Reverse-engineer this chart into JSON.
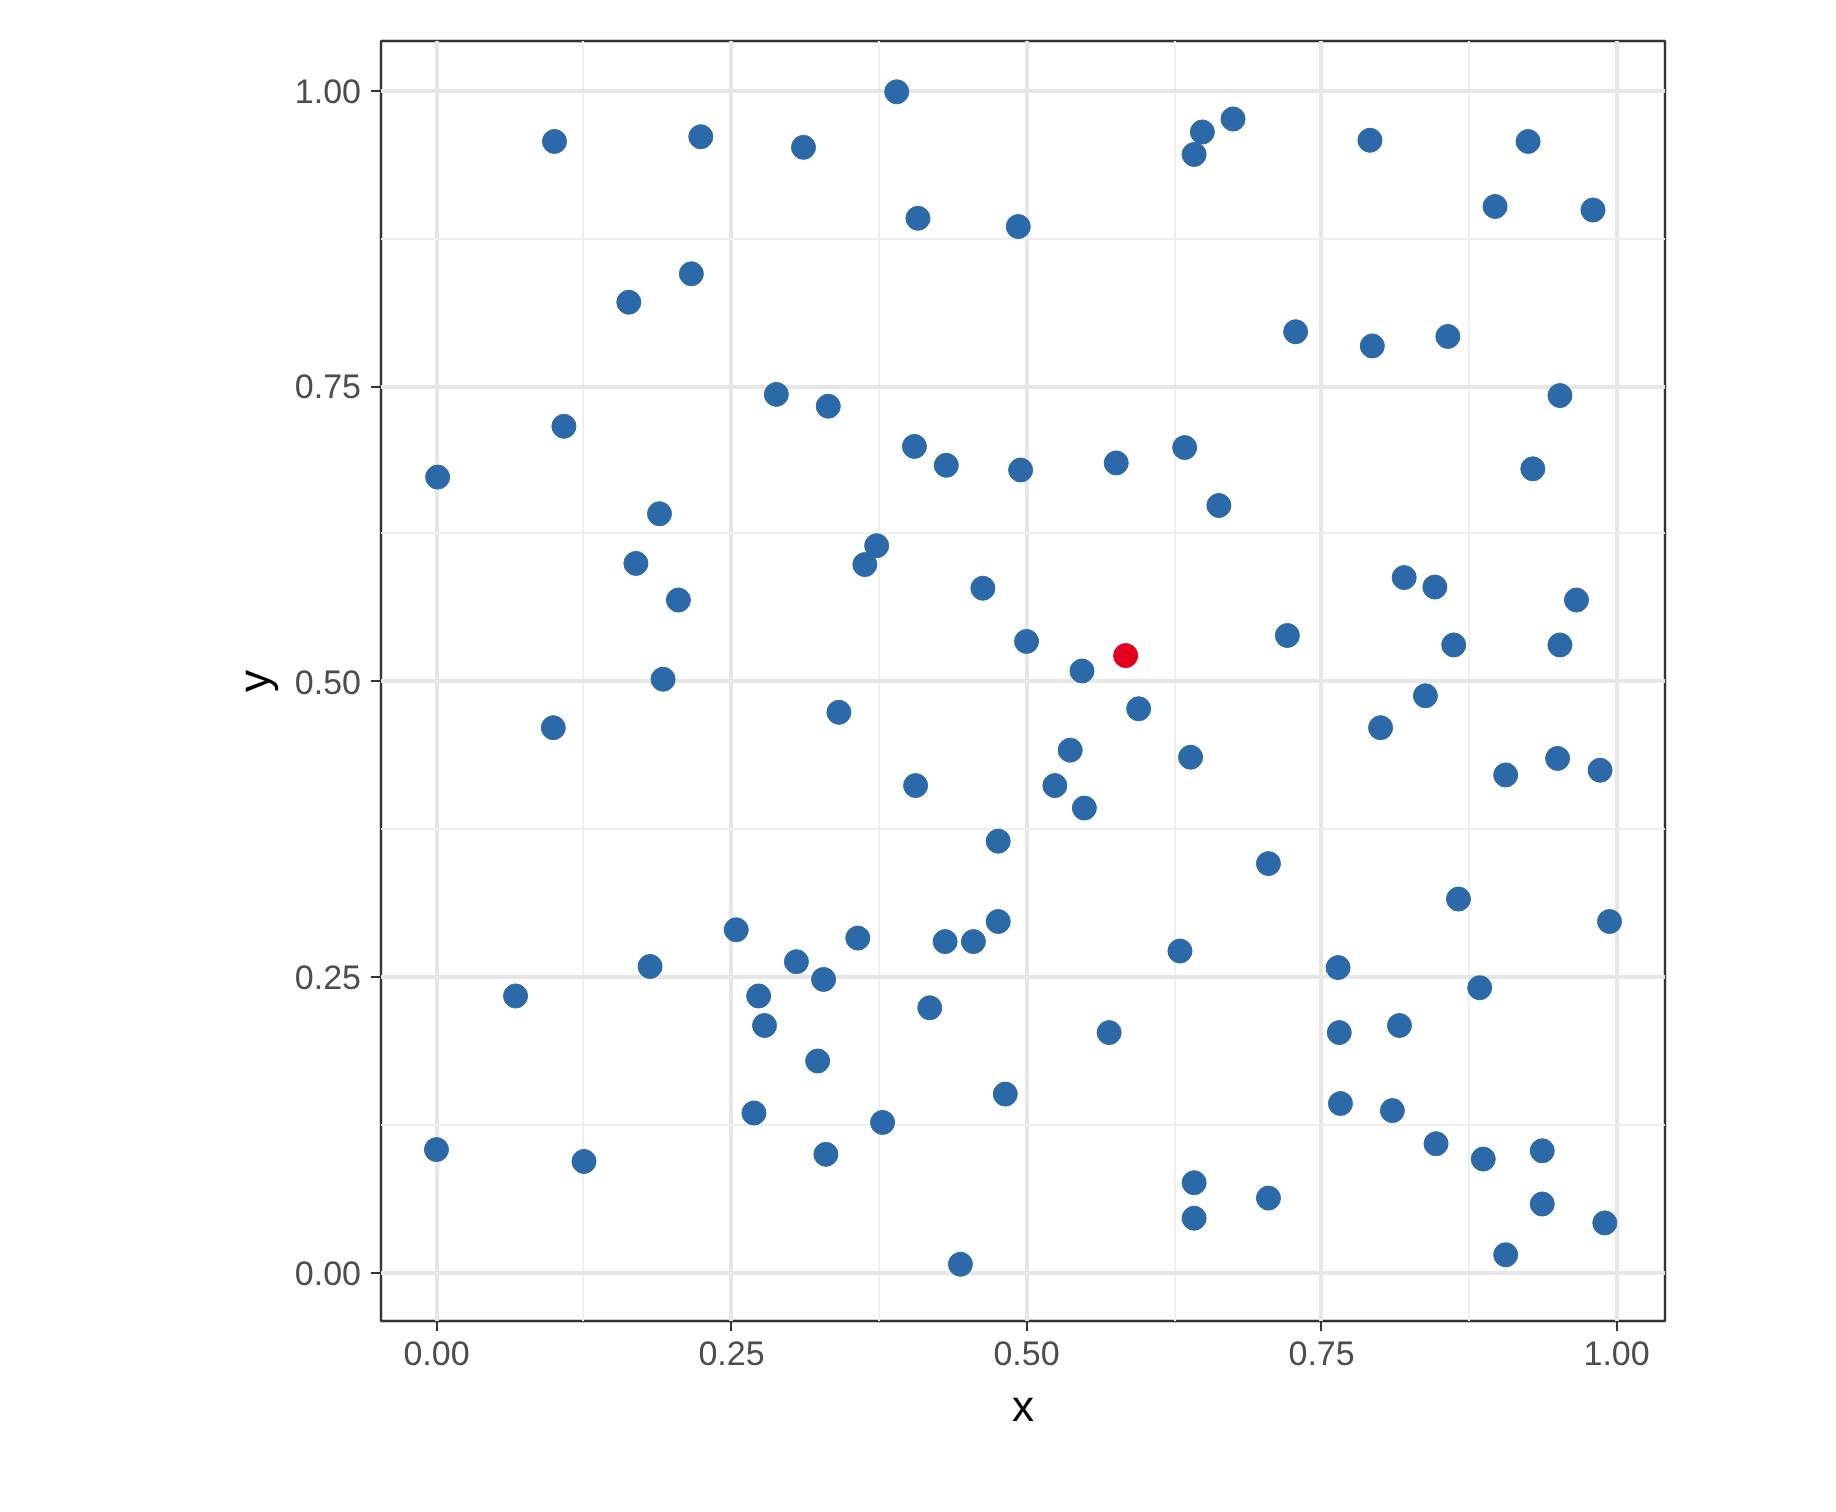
{
  "chart_data": {
    "type": "scatter",
    "xlabel": "x",
    "ylabel": "y",
    "xlim": [
      -0.047,
      1.041
    ],
    "ylim": [
      -0.041,
      1.042
    ],
    "xticks": [
      {
        "value": 0,
        "label": "0.00"
      },
      {
        "value": 0.25,
        "label": "0.25"
      },
      {
        "value": 0.5,
        "label": "0.50"
      },
      {
        "value": 0.75,
        "label": "0.75"
      },
      {
        "value": 1,
        "label": "1.00"
      }
    ],
    "yticks": [
      {
        "value": 0,
        "label": "0.00"
      },
      {
        "value": 0.25,
        "label": "0.25"
      },
      {
        "value": 0.5,
        "label": "0.50"
      },
      {
        "value": 0.75,
        "label": "0.75"
      },
      {
        "value": 1,
        "label": "1.00"
      }
    ],
    "grid": true,
    "marker": "circle",
    "series": [
      {
        "color": "#2c69a9",
        "x": [
          0.1,
          0.224,
          0.311,
          0.216,
          0.163,
          0.288,
          0.108,
          0.001,
          0.189,
          0.169,
          0.205,
          0.192,
          0.39,
          0.649,
          0.675,
          0.642,
          0.408,
          0.493,
          0.332,
          0.405,
          0.432,
          0.495,
          0.576,
          0.634,
          0.663,
          0.373,
          0.363,
          0.463,
          0.5,
          0.547,
          0.791,
          0.925,
          0.897,
          0.98,
          0.728,
          0.793,
          0.857,
          0.952,
          0.929,
          0.82,
          0.846,
          0.966,
          0.721,
          0.862,
          0.952,
          0.099,
          0.254,
          0.181,
          0.305,
          0.067,
          0.273,
          0.278,
          0.269,
          0.0,
          0.125,
          0.341,
          0.595,
          0.537,
          0.639,
          0.406,
          0.524,
          0.549,
          0.476,
          0.357,
          0.431,
          0.455,
          0.476,
          0.63,
          0.328,
          0.418,
          0.57,
          0.323,
          0.482,
          0.378,
          0.33,
          0.642,
          0.642,
          0.444,
          0.838,
          0.8,
          0.906,
          0.95,
          0.986,
          0.705,
          0.866,
          0.994,
          0.764,
          0.884,
          0.765,
          0.816,
          0.766,
          0.81,
          0.847,
          0.887,
          0.937,
          0.705,
          0.937,
          0.99,
          0.906
        ],
        "values": [
          0.957,
          0.961,
          0.952,
          0.845,
          0.821,
          0.743,
          0.716,
          0.673,
          0.642,
          0.6,
          0.569,
          0.502,
          0.999,
          0.965,
          0.976,
          0.946,
          0.892,
          0.885,
          0.733,
          0.699,
          0.683,
          0.679,
          0.685,
          0.698,
          0.649,
          0.615,
          0.599,
          0.579,
          0.534,
          0.509,
          0.958,
          0.957,
          0.902,
          0.899,
          0.796,
          0.784,
          0.792,
          0.742,
          0.68,
          0.588,
          0.58,
          0.569,
          0.539,
          0.531,
          0.531,
          0.461,
          0.29,
          0.259,
          0.263,
          0.234,
          0.234,
          0.209,
          0.135,
          0.104,
          0.094,
          0.474,
          0.477,
          0.442,
          0.436,
          0.412,
          0.412,
          0.393,
          0.365,
          0.283,
          0.28,
          0.28,
          0.297,
          0.272,
          0.248,
          0.224,
          0.203,
          0.179,
          0.151,
          0.127,
          0.1,
          0.076,
          0.046,
          0.007,
          0.488,
          0.461,
          0.421,
          0.435,
          0.425,
          0.346,
          0.316,
          0.297,
          0.258,
          0.241,
          0.203,
          0.209,
          0.143,
          0.137,
          0.109,
          0.096,
          0.103,
          0.063,
          0.058,
          0.042,
          0.015
        ]
      },
      {
        "color": "#e3001b",
        "x": [
          0.584
        ],
        "values": [
          0.522
        ]
      }
    ]
  }
}
